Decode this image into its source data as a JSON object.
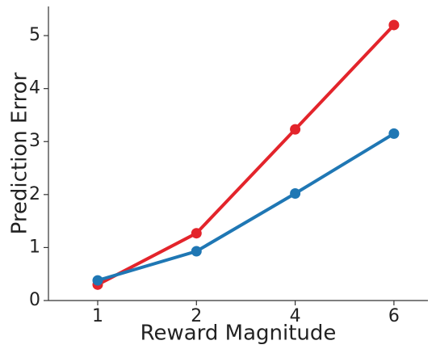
{
  "chart_data": {
    "type": "line",
    "x_label": "Reward Magnitude",
    "y_label": "Prediction Error",
    "categories": [
      "1",
      "2",
      "4",
      "6"
    ],
    "series": [
      {
        "color": "#e3242b",
        "values": [
          0.3,
          1.27,
          3.23,
          5.2
        ]
      },
      {
        "color": "#1f77b4",
        "values": [
          0.38,
          0.93,
          2.02,
          3.15
        ]
      }
    ],
    "ylim": [
      0,
      5.55
    ],
    "yticks": [
      0,
      1,
      2,
      3,
      4,
      5
    ],
    "grid": false
  }
}
